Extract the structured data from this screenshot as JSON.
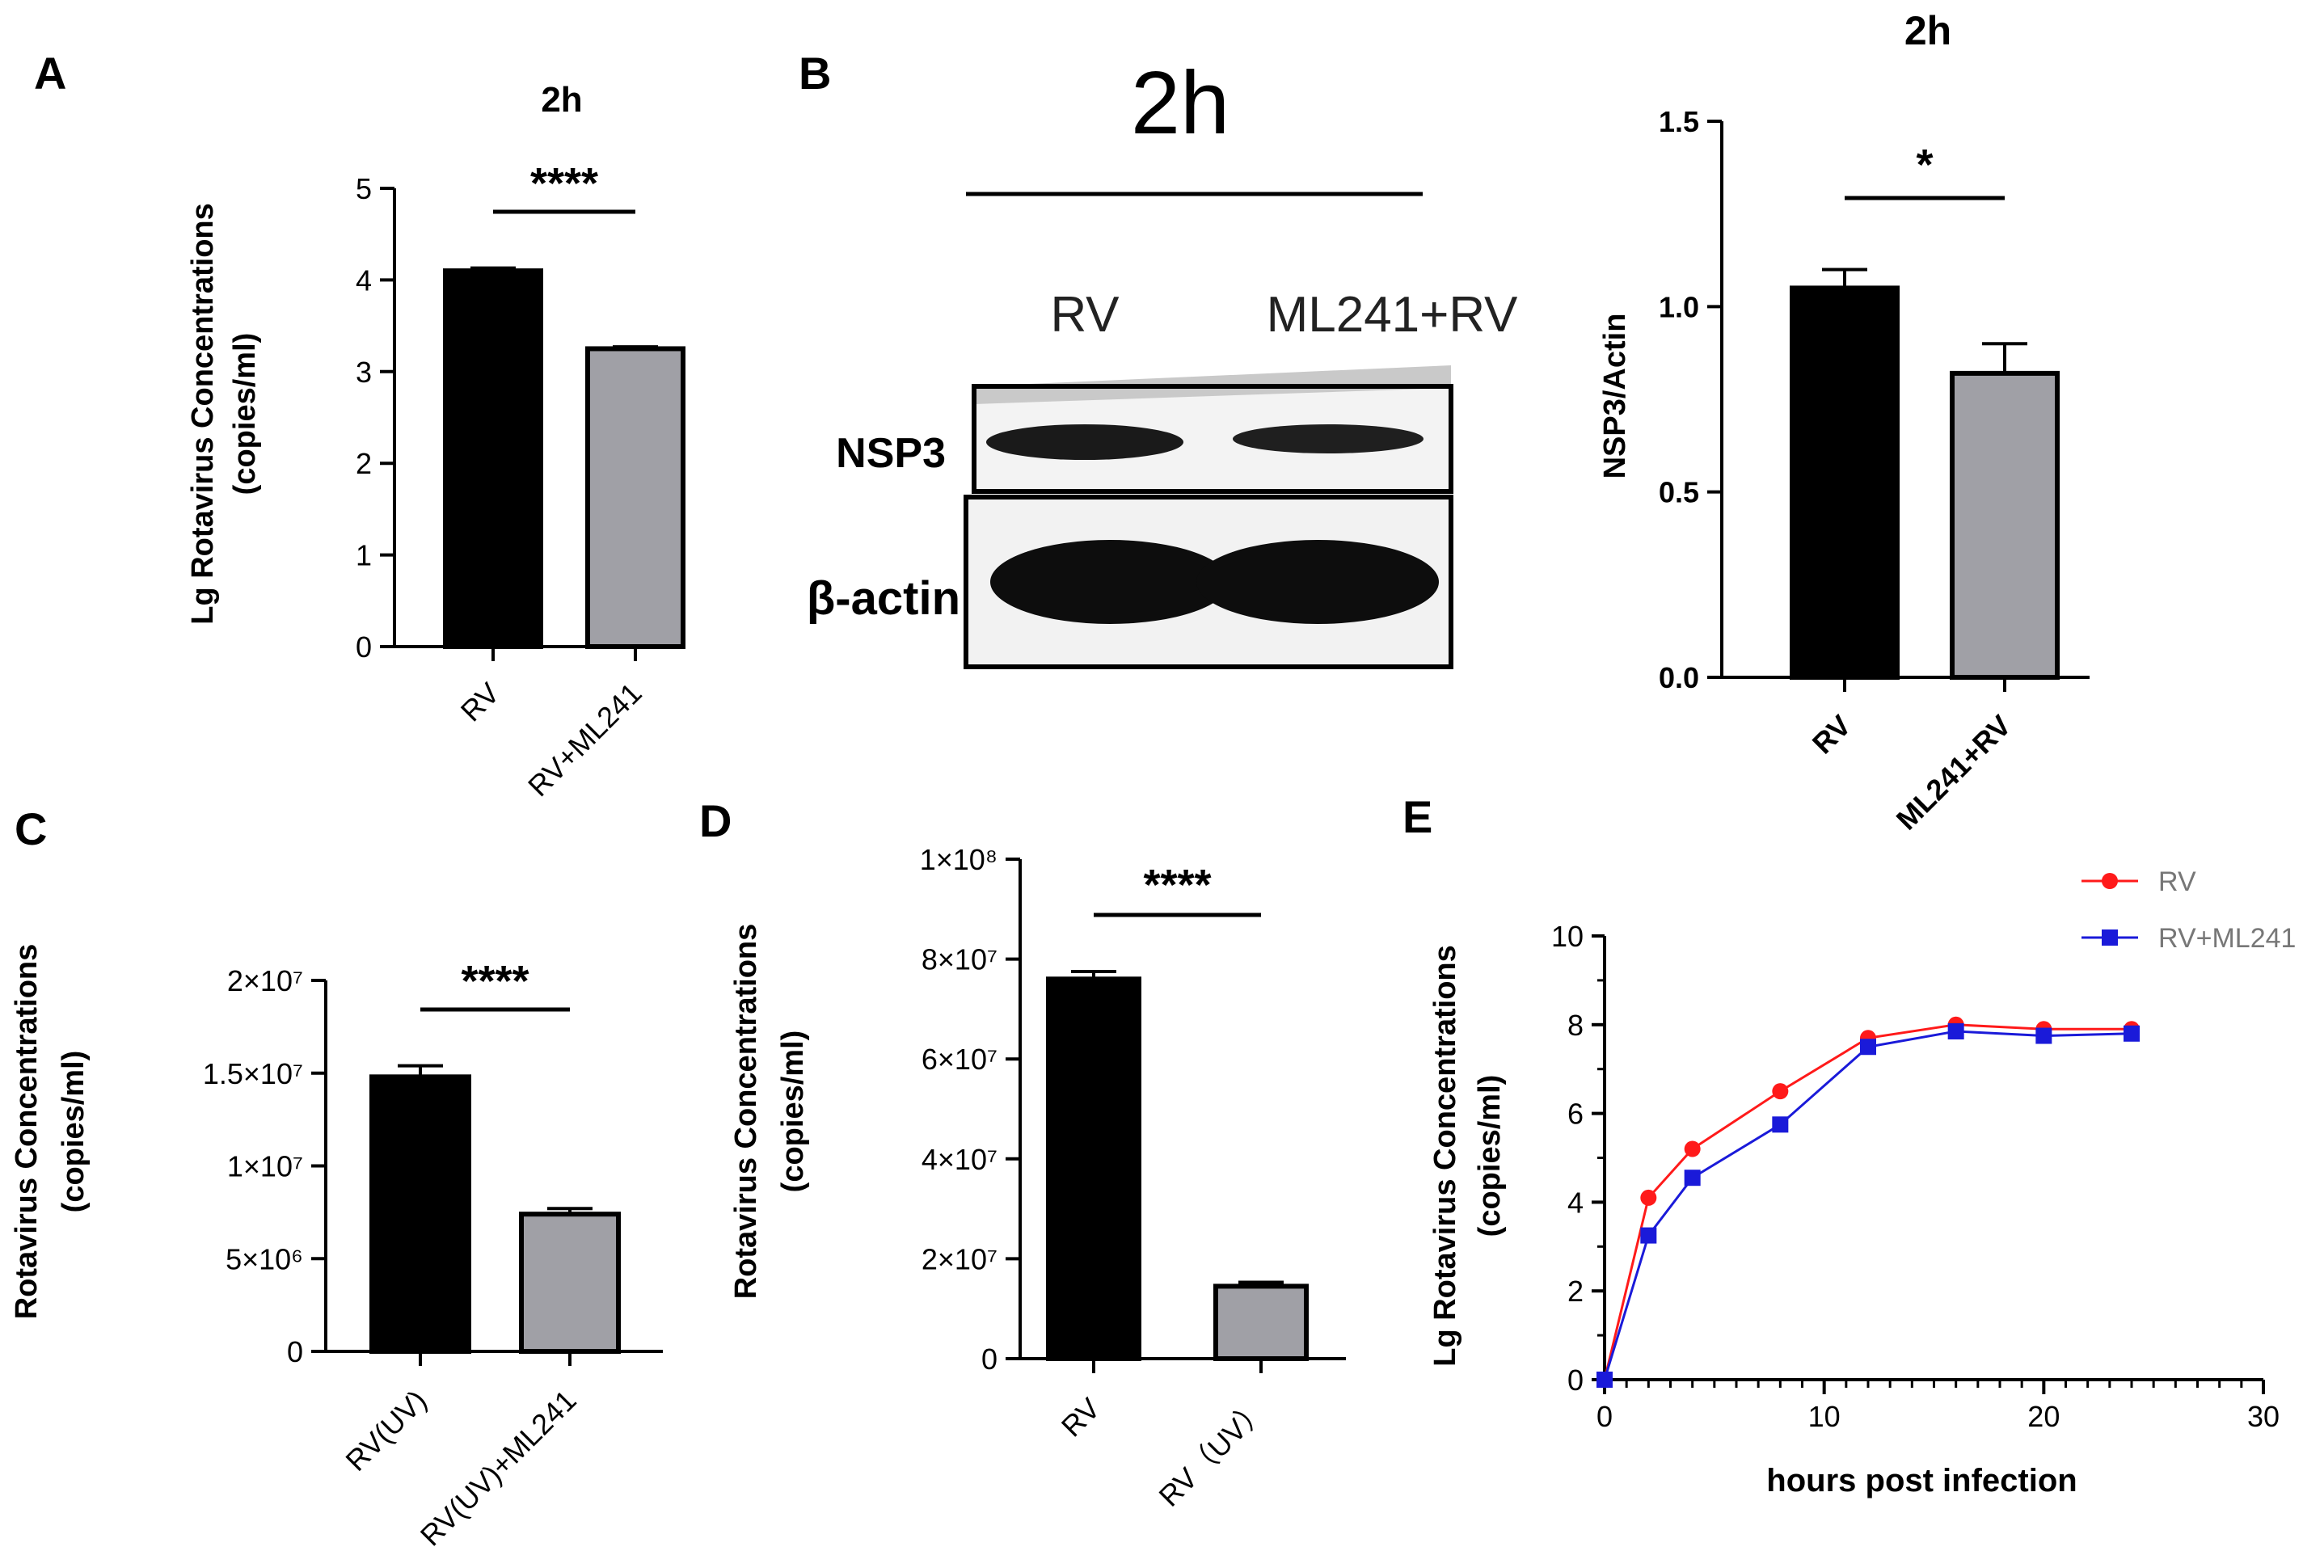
{
  "panels": {
    "A": {
      "letter": "A",
      "title": "2h"
    },
    "B": {
      "letter": "B",
      "blot_title": "2h",
      "lane_labels": [
        "RV",
        "ML241+RV"
      ],
      "row_labels": [
        "NSP3",
        "β-actin"
      ],
      "chart_title": "2h"
    },
    "C": {
      "letter": "C"
    },
    "D": {
      "letter": "D"
    },
    "E": {
      "letter": "E"
    }
  },
  "chart_data": [
    {
      "id": "A",
      "type": "bar",
      "title": "2h",
      "categories": [
        "RV",
        "RV+ML241"
      ],
      "values": [
        4.1,
        3.25
      ],
      "errors": [
        0.03,
        0.02
      ],
      "colors": [
        "#000000",
        "#a0a0a6"
      ],
      "ylabel": [
        "Lg Rotavirus Concentrations",
        "(copies/ml)"
      ],
      "ylim": [
        0,
        5
      ],
      "yticks": [
        0,
        1,
        2,
        3,
        4,
        5
      ],
      "ytick_labels": [
        "0",
        "1",
        "2",
        "3",
        "4",
        "5"
      ],
      "significance": "****"
    },
    {
      "id": "B",
      "type": "bar",
      "title": "2h",
      "categories": [
        "RV",
        "ML241+RV"
      ],
      "values": [
        1.05,
        0.82
      ],
      "errors": [
        0.05,
        0.08
      ],
      "colors": [
        "#000000",
        "#a0a0a6"
      ],
      "ylabel": [
        "NSP3/Actin"
      ],
      "ylim": [
        0,
        1.5
      ],
      "yticks": [
        0,
        0.5,
        1.0,
        1.5
      ],
      "ytick_labels": [
        "0.0",
        "0.5",
        "1.0",
        "1.5"
      ],
      "significance": "*"
    },
    {
      "id": "C",
      "type": "bar",
      "title": "",
      "categories": [
        "RV(UV)",
        "RV(UV)+ML241"
      ],
      "values": [
        14800000,
        7400000
      ],
      "errors": [
        600000,
        300000
      ],
      "colors": [
        "#000000",
        "#a0a0a6"
      ],
      "ylabel": [
        "Rotavirus Concentrations",
        "(copies/ml)"
      ],
      "ylim": [
        0,
        20000000
      ],
      "yticks": [
        0,
        5000000,
        10000000,
        15000000,
        20000000
      ],
      "ytick_labels": [
        "0",
        "5×10⁶",
        "1×10⁷",
        "1.5×10⁷",
        "2×10⁷"
      ],
      "significance": "****"
    },
    {
      "id": "D",
      "type": "bar",
      "title": "",
      "categories": [
        "RV",
        "RV（UV）"
      ],
      "values": [
        76000000,
        14500000
      ],
      "errors": [
        1500000,
        800000
      ],
      "colors": [
        "#000000",
        "#a0a0a6"
      ],
      "ylabel": [
        "Rotavirus Concentrations",
        "(copies/ml)"
      ],
      "ylim": [
        0,
        100000000
      ],
      "yticks": [
        0,
        20000000,
        40000000,
        60000000,
        80000000,
        100000000
      ],
      "ytick_labels": [
        "0",
        "2×10⁷",
        "4×10⁷",
        "6×10⁷",
        "8×10⁷",
        "1×10⁸"
      ],
      "significance": "****"
    },
    {
      "id": "E",
      "type": "line",
      "title": "",
      "xlabel": "hours post infection",
      "ylabel": [
        "Lg Rotavirus Concentrations",
        "(copies/ml)"
      ],
      "xlim": [
        0,
        30
      ],
      "ylim": [
        0,
        10
      ],
      "xticks": [
        0,
        10,
        20,
        30
      ],
      "xtick_labels": [
        "0",
        "10",
        "20",
        "30"
      ],
      "yticks": [
        0,
        2,
        4,
        6,
        8,
        10
      ],
      "ytick_labels": [
        "0",
        "2",
        "4",
        "6",
        "8",
        "10"
      ],
      "x": [
        0,
        2,
        4,
        8,
        12,
        16,
        20,
        24
      ],
      "series": [
        {
          "name": "RV",
          "color": "#ff1a1a",
          "marker": "circle",
          "values": [
            0,
            4.1,
            5.2,
            6.5,
            7.7,
            8.0,
            7.9,
            7.9
          ]
        },
        {
          "name": "RV+ML241",
          "color": "#1a1ad9",
          "marker": "square",
          "values": [
            0,
            3.25,
            4.55,
            5.75,
            7.5,
            7.85,
            7.75,
            7.8
          ]
        }
      ],
      "legend_position": "top-right"
    }
  ]
}
